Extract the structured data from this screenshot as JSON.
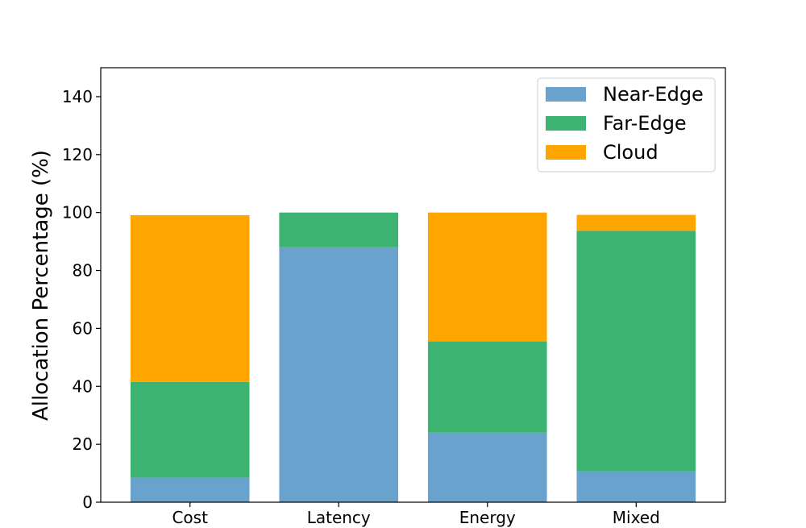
{
  "chart_data": {
    "type": "bar",
    "stacked": true,
    "categories": [
      "Cost",
      "Latency",
      "Energy",
      "Mixed"
    ],
    "series": [
      {
        "name": "Near-Edge",
        "color": "#69a3cd",
        "values": [
          8.5,
          88.0,
          24.0,
          10.7
        ]
      },
      {
        "name": "Far-Edge",
        "color": "#3cb371",
        "values": [
          33.0,
          12.0,
          31.5,
          83.0
        ]
      },
      {
        "name": "Cloud",
        "color": "#ffa500",
        "values": [
          57.6,
          0.0,
          44.5,
          5.5
        ]
      }
    ],
    "ylabel": "Allocation Percentage (%)",
    "xlabel": "",
    "ylim": [
      0,
      150
    ],
    "yticks": [
      0,
      20,
      40,
      60,
      80,
      100,
      120,
      140
    ],
    "grid": false,
    "legend_position": "top-right"
  }
}
